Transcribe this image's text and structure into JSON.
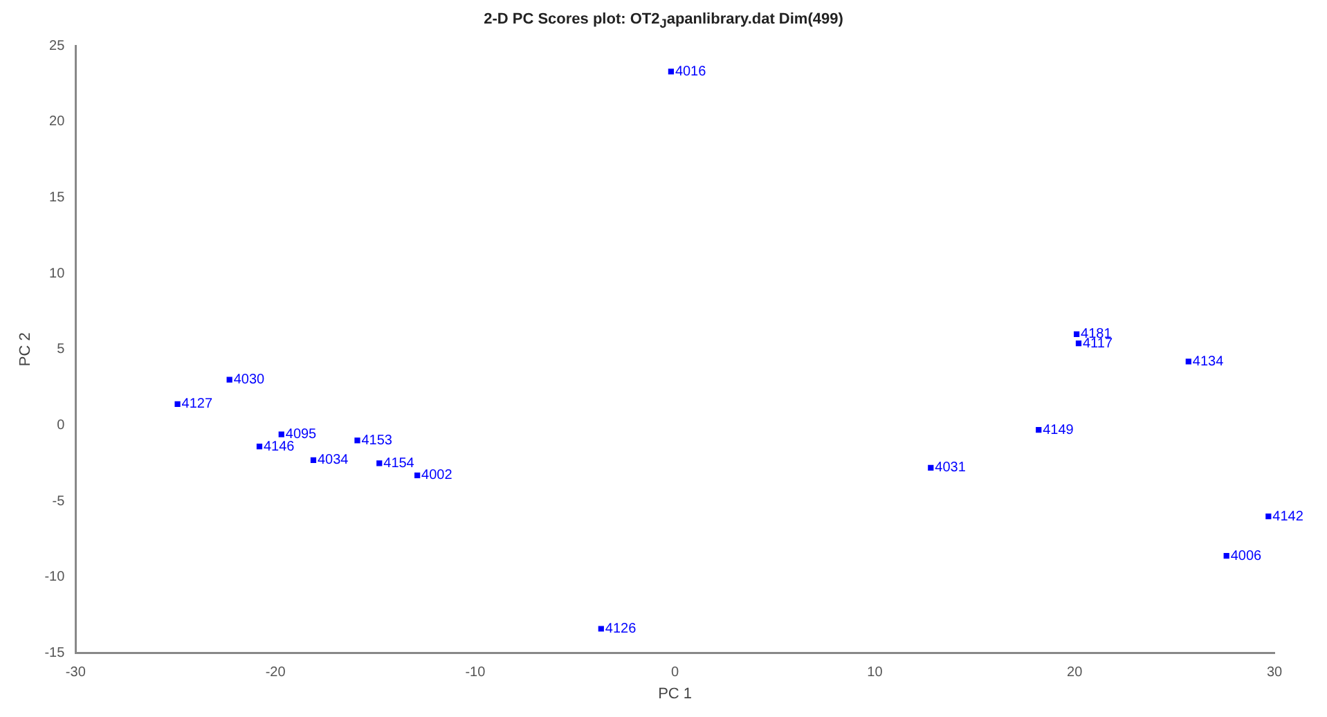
{
  "chart_data": {
    "type": "scatter",
    "title": "2-D PC Scores plot: OT2$_{J}$apanlibrary.dat Dim(499)",
    "xlabel": "PC 1",
    "ylabel": "PC 2",
    "x": [
      -0.2,
      20.1,
      20.2,
      25.7,
      18.2,
      12.8,
      29.7,
      27.6,
      -22.3,
      -24.9,
      -19.7,
      -20.8,
      -18.1,
      -15.9,
      -14.8,
      -12.9,
      -3.7
    ],
    "series": [
      {
        "color": "#0000ff",
        "values": [
          23.3,
          6.0,
          5.4,
          4.2,
          -0.3,
          -2.8,
          -6.0,
          -8.6,
          3.0,
          1.4,
          -0.6,
          -1.4,
          -2.3,
          -1.0,
          -2.5,
          -3.3,
          -13.4
        ]
      }
    ],
    "xlim": [
      -30,
      30
    ],
    "xticks": [
      -30,
      -20,
      -10,
      0,
      10,
      20,
      30
    ],
    "ylim": [
      -15,
      25
    ],
    "yticks": [
      -15,
      -10,
      -5,
      0,
      5,
      10,
      15,
      20,
      25
    ],
    "grid": false,
    "legend": false,
    "marker": "square",
    "annotations": [
      {
        "text": "4016",
        "x": -0.2,
        "y": 23.3
      },
      {
        "text": "4181",
        "x": 20.1,
        "y": 6.0
      },
      {
        "text": "4117",
        "x": 20.2,
        "y": 5.4
      },
      {
        "text": "4134",
        "x": 25.7,
        "y": 4.2
      },
      {
        "text": "4149",
        "x": 18.2,
        "y": -0.3
      },
      {
        "text": "4031",
        "x": 12.8,
        "y": -2.8
      },
      {
        "text": "4142",
        "x": 29.7,
        "y": -6.0
      },
      {
        "text": "4006",
        "x": 27.6,
        "y": -8.6
      },
      {
        "text": "4030",
        "x": -22.3,
        "y": 3.0
      },
      {
        "text": "4127",
        "x": -24.9,
        "y": 1.4
      },
      {
        "text": "4095",
        "x": -19.7,
        "y": -0.6
      },
      {
        "text": "4146",
        "x": -20.8,
        "y": -1.4
      },
      {
        "text": "4034",
        "x": -18.1,
        "y": -2.3
      },
      {
        "text": "4153",
        "x": -15.9,
        "y": -1.0
      },
      {
        "text": "4154",
        "x": -14.8,
        "y": -2.5
      },
      {
        "text": "4002",
        "x": -12.9,
        "y": -3.3
      },
      {
        "text": "4126",
        "x": -3.7,
        "y": -13.4
      }
    ]
  }
}
